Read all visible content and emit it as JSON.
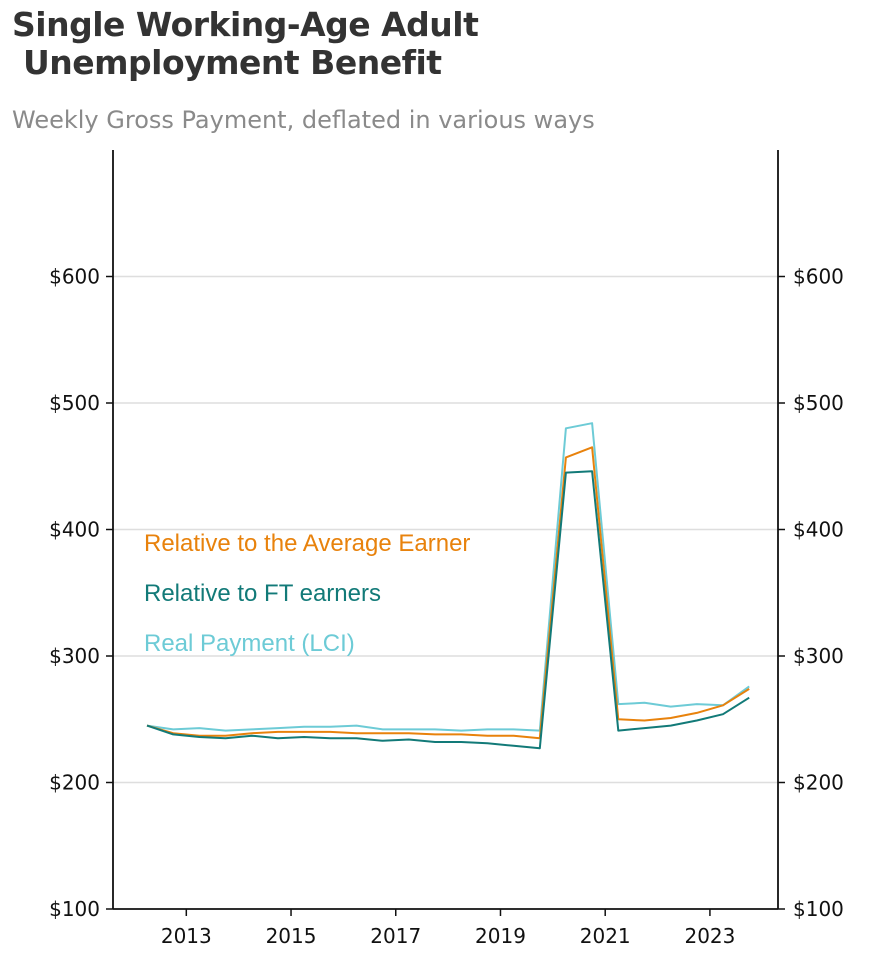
{
  "title": "Single Working-Age Adult\n Unemployment Benefit",
  "subtitle": "Weekly Gross Payment, deflated in various ways",
  "chart_data": {
    "type": "line",
    "title": "Single Working-Age Adult Unemployment Benefit",
    "subtitle": "Weekly Gross Payment, deflated in various ways",
    "xlim": [
      2011.6,
      2024.3
    ],
    "ylim": [
      100,
      700
    ],
    "y_ticks": [
      100,
      200,
      300,
      400,
      500,
      600
    ],
    "y_tick_labels": [
      "$100",
      "$200",
      "$300",
      "$400",
      "$500",
      "$600"
    ],
    "x_ticks": [
      2013,
      2015,
      2017,
      2019,
      2021,
      2023
    ],
    "x_tick_labels": [
      "2013",
      "2015",
      "2017",
      "2019",
      "2021",
      "2023"
    ],
    "grid": "horizontal",
    "secondary_y_axis": true,
    "legend": "inline-left",
    "x": [
      2012.25,
      2012.75,
      2013.25,
      2013.75,
      2014.25,
      2014.75,
      2015.25,
      2015.75,
      2016.25,
      2016.75,
      2017.25,
      2017.75,
      2018.25,
      2018.75,
      2019.25,
      2019.75,
      2020.25,
      2020.75,
      2021.25,
      2021.75,
      2022.25,
      2022.75,
      2023.25,
      2023.75
    ],
    "series": [
      {
        "name": "Relative to the Average Earner",
        "color": "#e8820c",
        "values": [
          245,
          239,
          237,
          237,
          239,
          240,
          240,
          240,
          239,
          239,
          239,
          238,
          238,
          237,
          237,
          235,
          457,
          465,
          250,
          249,
          251,
          255,
          261,
          274
        ]
      },
      {
        "name": "Relative to FT earners",
        "color": "#127a78",
        "values": [
          245,
          238,
          236,
          235,
          237,
          235,
          236,
          235,
          235,
          233,
          234,
          232,
          232,
          231,
          229,
          227,
          445,
          446,
          241,
          243,
          245,
          249,
          254,
          267
        ]
      },
      {
        "name": "Real Payment (LCI)",
        "color": "#6dcbd6",
        "values": [
          245,
          242,
          243,
          241,
          242,
          243,
          244,
          244,
          245,
          242,
          242,
          242,
          241,
          242,
          242,
          241,
          480,
          484,
          262,
          263,
          260,
          262,
          261,
          276
        ]
      }
    ]
  }
}
